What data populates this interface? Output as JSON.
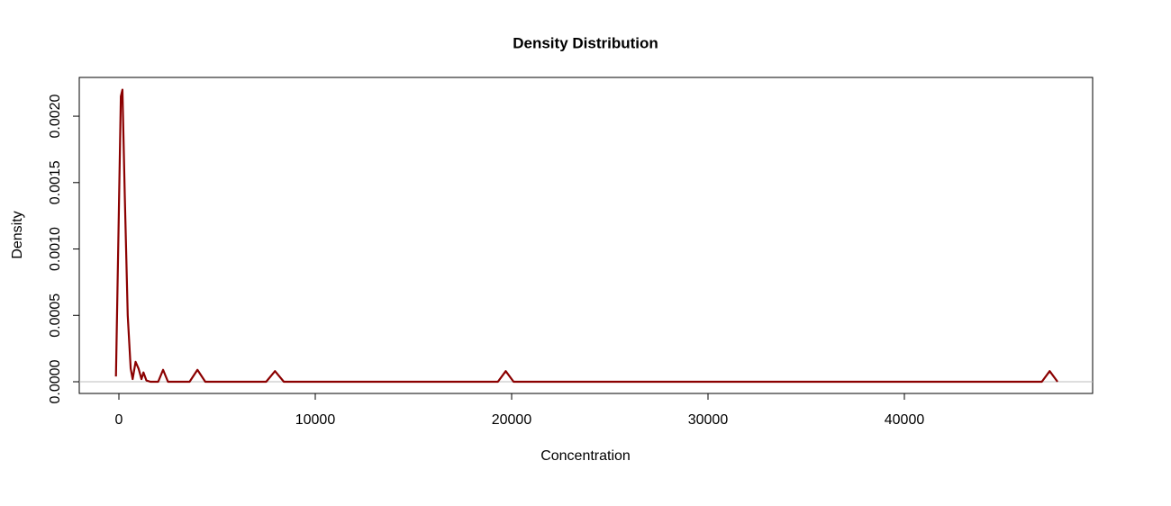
{
  "chart_data": {
    "type": "line",
    "title": "Density Distribution",
    "x_label": "Concentration",
    "y_label": "Density",
    "x": [
      -150,
      0,
      100,
      180,
      300,
      450,
      600,
      700,
      850,
      1000,
      1150,
      1250,
      1400,
      1600,
      2000,
      2250,
      2500,
      3600,
      4000,
      4400,
      7500,
      7950,
      8400,
      19300,
      19700,
      20100,
      47000,
      47400,
      47800
    ],
    "values": [
      4e-05,
      0.0013,
      0.00215,
      0.0022,
      0.0014,
      0.0005,
      0.0001,
      2e-05,
      0.00015,
      0.0001,
      2e-05,
      7e-05,
      1e-05,
      0,
      0,
      9e-05,
      0,
      0,
      9e-05,
      0,
      0,
      8e-05,
      0,
      0,
      8e-05,
      0,
      0,
      8e-05,
      0
    ],
    "color": "#8b0000",
    "xlim": [
      -2018,
      49587
    ],
    "xticks": [
      0,
      10000,
      20000,
      30000,
      40000
    ],
    "ylim": [
      -8.81e-05,
      0.002292
    ],
    "yticks": [
      {
        "value": 0,
        "label": "0.0000"
      },
      {
        "value": 0.0005,
        "label": "0.0005"
      },
      {
        "value": 0.001,
        "label": "0.0010"
      },
      {
        "value": 0.0015,
        "label": "0.0015"
      },
      {
        "value": 0.002,
        "label": "0.0020"
      }
    ],
    "zero_line": true
  }
}
